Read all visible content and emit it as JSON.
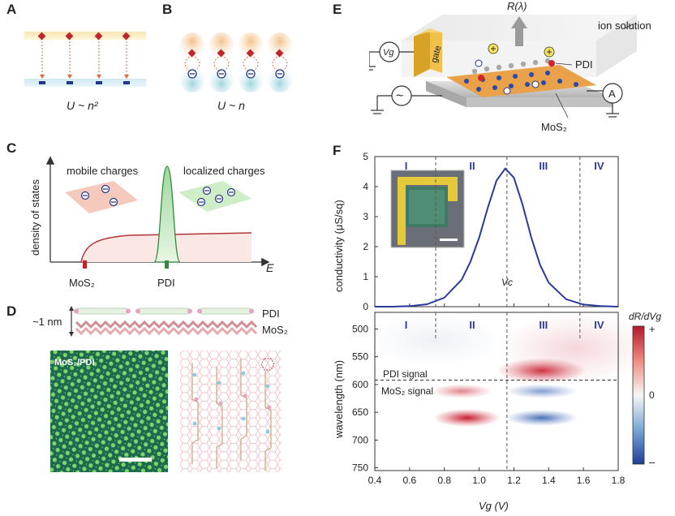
{
  "panels": {
    "A": {
      "letter": "A",
      "formula": "U ~ n²"
    },
    "B": {
      "letter": "B",
      "formula": "U ~ n"
    },
    "C": {
      "letter": "C",
      "ylabel": "density of states",
      "xlabel": "E",
      "mobile": "mobile charges",
      "localized": "localized charges",
      "mos2": "MoS₂",
      "pdi": "PDI"
    },
    "D": {
      "letter": "D",
      "spacing": "~1 nm",
      "pdi": "PDI",
      "mos2": "MoS₂",
      "stm_label": "MoS₂/PDI"
    },
    "E": {
      "letter": "E",
      "r_lambda": "R(λ)",
      "ion": "ion solution",
      "gate": "gate",
      "vg": "Vg",
      "pdi": "PDI",
      "mos2": "MoS₂",
      "ammeter": "A",
      "ac": "~"
    },
    "F": {
      "letter": "F",
      "ylabel_top": "conductivity (μS/sq)",
      "ylabel_bottom": "wavelength (nm)",
      "xlabel": "Vg (V)",
      "vc": "Vc",
      "regions": [
        "I",
        "II",
        "III",
        "IV"
      ],
      "pdi_signal": "PDI signal",
      "mos2_signal": "MoS₂ signal",
      "colorbar_title": "dR/dVg",
      "colorbar_ticks": [
        "+",
        "0",
        "–"
      ]
    }
  },
  "chart_data": [
    {
      "type": "line",
      "title": "",
      "xlabel": "Vg (V)",
      "ylabel": "conductivity (μS/sq)",
      "xlim": [
        0.4,
        1.8
      ],
      "ylim": [
        0,
        5
      ],
      "x_ticks": [
        0.4,
        0.6,
        0.8,
        1.0,
        1.2,
        1.4,
        1.6,
        1.8
      ],
      "y_ticks": [
        0,
        1,
        2,
        3,
        4,
        5
      ],
      "series": [
        {
          "color": "#2a3a9c",
          "x": [
            0.4,
            0.5,
            0.6,
            0.7,
            0.8,
            0.9,
            0.95,
            1.0,
            1.05,
            1.1,
            1.15,
            1.2,
            1.25,
            1.3,
            1.35,
            1.4,
            1.5,
            1.6,
            1.7,
            1.8
          ],
          "y": [
            0.0,
            0.0,
            0.02,
            0.08,
            0.3,
            0.9,
            1.5,
            2.3,
            3.3,
            4.2,
            4.6,
            4.3,
            3.4,
            2.3,
            1.4,
            0.8,
            0.25,
            0.07,
            0.02,
            0.0
          ]
        }
      ],
      "vlines": [
        0.75,
        1.16,
        1.58
      ],
      "vc_x": 1.16
    },
    {
      "type": "heatmap",
      "xlabel": "Vg (V)",
      "ylabel": "wavelength (nm)",
      "xlim": [
        0.4,
        1.8
      ],
      "ylim": [
        755,
        470
      ],
      "x_ticks": [
        0.4,
        0.6,
        0.8,
        1.0,
        1.2,
        1.4,
        1.6,
        1.8
      ],
      "y_ticks": [
        500,
        550,
        600,
        650,
        700,
        750
      ],
      "hline": 592,
      "blobs": [
        {
          "x": 1.36,
          "y": 575,
          "sx": 0.16,
          "sy": 14,
          "amp": 0.9
        },
        {
          "x": 0.93,
          "y": 660,
          "sx": 0.12,
          "sy": 10,
          "amp": 1.0
        },
        {
          "x": 0.9,
          "y": 612,
          "sx": 0.11,
          "sy": 8,
          "amp": 0.55
        },
        {
          "x": 1.36,
          "y": 612,
          "sx": 0.13,
          "sy": 8,
          "amp": -0.55
        },
        {
          "x": 1.36,
          "y": 660,
          "sx": 0.13,
          "sy": 9,
          "amp": -0.8
        },
        {
          "x": 1.55,
          "y": 535,
          "sx": 0.28,
          "sy": 40,
          "amp": 0.18
        },
        {
          "x": 0.75,
          "y": 520,
          "sx": 0.25,
          "sy": 30,
          "amp": -0.08
        }
      ]
    }
  ]
}
